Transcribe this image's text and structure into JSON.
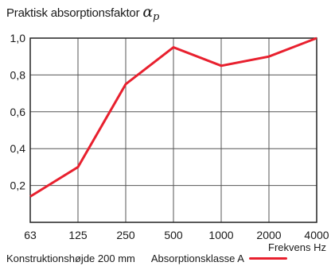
{
  "chart_data": {
    "type": "line",
    "title": {
      "text": "Praktisk absorptionsfaktor",
      "symbol": "α",
      "subscript": "p"
    },
    "xlabel": "Frekvens Hz",
    "x_scale": "categorical-log",
    "categories": [
      "63",
      "125",
      "250",
      "500",
      "1000",
      "2000",
      "4000"
    ],
    "y_ticks": [
      "0,2",
      "0,4",
      "0,6",
      "0,8",
      "1,0"
    ],
    "ylim": [
      0,
      1.0
    ],
    "grid": true,
    "series": [
      {
        "name": "Absorptionsklasse A",
        "values": [
          0.14,
          0.3,
          0.75,
          0.95,
          0.85,
          0.9,
          1.0
        ],
        "color": "#e8202e"
      }
    ],
    "annotations": {
      "construction": "Konstruktionshøjde 200 mm",
      "legend_label": "Absorptionsklasse A"
    },
    "colors": {
      "grid": "#555555",
      "frame": "#222222",
      "line": "#e8202e"
    }
  }
}
